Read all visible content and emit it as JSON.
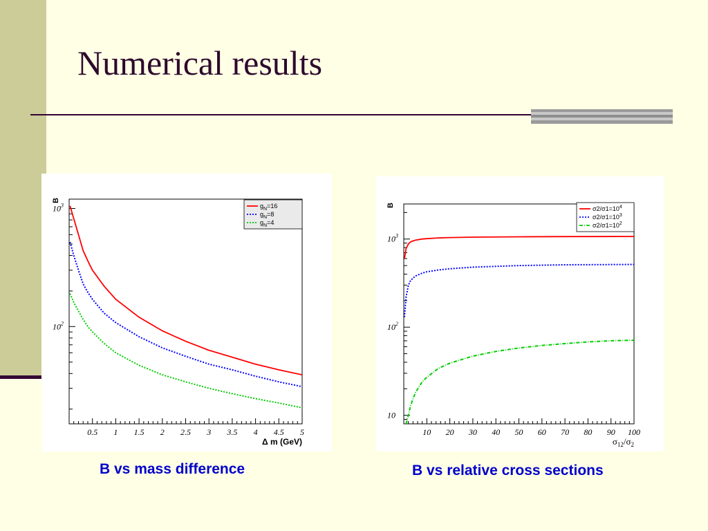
{
  "slide": {
    "title": "Numerical results",
    "captions": [
      "B vs mass difference",
      "B vs relative cross sections"
    ],
    "colors": {
      "background": "#FFFFE5",
      "sidebar": "#CCCC99",
      "title": "#2D0A2D",
      "caption": "#0000CC"
    }
  },
  "chart_data": [
    {
      "type": "line",
      "title": "",
      "xlabel": "Δ m (GeV)",
      "ylabel": "B",
      "xlim": [
        0,
        5
      ],
      "ylim": [
        15,
        1200
      ],
      "yscale": "log",
      "grid": false,
      "legend_position": "top-right",
      "x_ticks": [
        0.5,
        1,
        1.5,
        2,
        2.5,
        3,
        3.5,
        4,
        4.5,
        5
      ],
      "x_tick_labels": [
        "0.5",
        "1",
        "1.5",
        "2",
        "2.5",
        "3",
        "3.5",
        "4",
        "4.5",
        "5"
      ],
      "y_ticks": [
        100,
        1000
      ],
      "y_tick_labels": [
        {
          "base": "10",
          "exp": "2"
        },
        {
          "base": "10",
          "exp": "3"
        }
      ],
      "series": [
        {
          "legend_main": "g",
          "legend_sub": "N",
          "legend_rest": "=16",
          "color": "#FF0000",
          "dash": "solid",
          "x": [
            0.02,
            0.1,
            0.2,
            0.3,
            0.4,
            0.5,
            0.75,
            1,
            1.5,
            2,
            2.5,
            3,
            3.5,
            4,
            4.5,
            5
          ],
          "values": [
            1050,
            820,
            600,
            440,
            360,
            300,
            220,
            170,
            120,
            92,
            75,
            63,
            55,
            48,
            43,
            39
          ]
        },
        {
          "legend_main": "g",
          "legend_sub": "N",
          "legend_rest": "=8",
          "color": "#0000FF",
          "dash": "dotted",
          "x": [
            0.02,
            0.1,
            0.2,
            0.3,
            0.4,
            0.5,
            0.75,
            1,
            1.5,
            2,
            2.5,
            3,
            3.5,
            4,
            4.5,
            5
          ],
          "values": [
            520,
            400,
            300,
            230,
            195,
            170,
            130,
            108,
            82,
            66,
            56,
            48,
            43,
            38,
            34,
            31
          ]
        },
        {
          "legend_main": "g",
          "legend_sub": "N",
          "legend_rest": "=4",
          "color": "#00CC00",
          "dash": "dotted",
          "x": [
            0.02,
            0.1,
            0.2,
            0.3,
            0.4,
            0.5,
            0.75,
            1,
            1.5,
            2,
            2.5,
            3,
            3.5,
            4,
            4.5,
            5
          ],
          "values": [
            190,
            160,
            135,
            115,
            100,
            90,
            72,
            60,
            47,
            39,
            34,
            30,
            27,
            24.5,
            22.5,
            20.5
          ]
        }
      ]
    },
    {
      "type": "line",
      "title": "",
      "xlabel": "σ12/σ2",
      "ylabel": "B",
      "xlim": [
        0,
        100
      ],
      "ylim": [
        8,
        2500
      ],
      "yscale": "log",
      "grid": false,
      "legend_position": "top-right",
      "x_ticks": [
        10,
        20,
        30,
        40,
        50,
        60,
        70,
        80,
        90,
        100
      ],
      "x_tick_labels": [
        "10",
        "20",
        "30",
        "40",
        "50",
        "60",
        "70",
        "80",
        "90",
        "100"
      ],
      "y_ticks": [
        10,
        100,
        1000
      ],
      "y_tick_labels": [
        {
          "base": "10",
          "exp": ""
        },
        {
          "base": "10",
          "exp": "2"
        },
        {
          "base": "10",
          "exp": "3"
        }
      ],
      "series": [
        {
          "legend_main": "σ2/σ1=10",
          "legend_exp": "4",
          "color": "#FF0000",
          "dash": "solid",
          "x": [
            0.3,
            1,
            2,
            3,
            5,
            8,
            10,
            15,
            20,
            30,
            50,
            70,
            100
          ],
          "values": [
            600,
            780,
            880,
            930,
            970,
            1000,
            1010,
            1030,
            1040,
            1050,
            1060,
            1065,
            1070
          ]
        },
        {
          "legend_main": "σ2/σ1=10",
          "legend_exp": "3",
          "color": "#0000FF",
          "dash": "dotted",
          "x": [
            0.3,
            1,
            2,
            3,
            5,
            8,
            10,
            15,
            20,
            30,
            50,
            70,
            100
          ],
          "values": [
            130,
            220,
            300,
            340,
            380,
            410,
            425,
            445,
            460,
            480,
            500,
            510,
            515
          ]
        },
        {
          "legend_main": "σ2/σ1=10",
          "legend_exp": "2",
          "color": "#00CC00",
          "dash": "dashdot",
          "x": [
            1,
            2,
            3,
            5,
            8,
            10,
            15,
            20,
            30,
            40,
            50,
            60,
            70,
            80,
            90,
            100
          ],
          "values": [
            8,
            10,
            13,
            18,
            24,
            27,
            34,
            39,
            47,
            53,
            58,
            62,
            65,
            68,
            70,
            71
          ]
        }
      ]
    }
  ]
}
